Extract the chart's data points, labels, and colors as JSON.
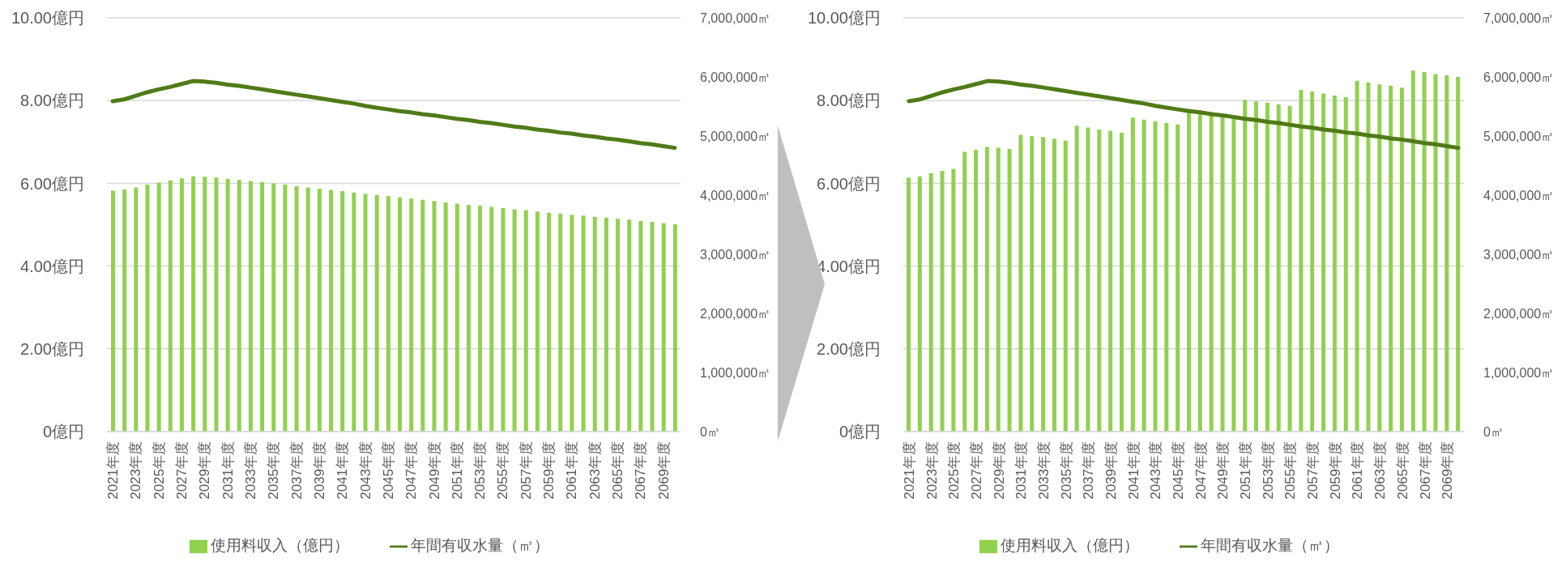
{
  "chart_data": [
    {
      "type": "bar",
      "categories": [
        "2021年度",
        null,
        "2023年度",
        null,
        "2025年度",
        null,
        "2027年度",
        null,
        "2029年度",
        null,
        "2031年度",
        null,
        "2033年度",
        null,
        "2035年度",
        null,
        "2037年度",
        null,
        "2039年度",
        null,
        "2041年度",
        null,
        "2043年度",
        null,
        "2045年度",
        null,
        "2047年度",
        null,
        "2049年度",
        null,
        "2051年度",
        null,
        "2053年度",
        null,
        "2055年度",
        null,
        "2057年度",
        null,
        "2059年度",
        null,
        "2061年度",
        null,
        "2063年度",
        null,
        "2065年度",
        null,
        "2067年度",
        null,
        "2069年度",
        null
      ],
      "series": [
        {
          "name": "使用料収入（億円）",
          "color": "#92d050",
          "values": [
            5.82,
            5.85,
            5.9,
            5.97,
            6.02,
            6.07,
            6.12,
            6.17,
            6.16,
            6.14,
            6.11,
            6.08,
            6.05,
            6.03,
            6.0,
            5.97,
            5.93,
            5.9,
            5.87,
            5.84,
            5.81,
            5.78,
            5.75,
            5.72,
            5.69,
            5.66,
            5.63,
            5.6,
            5.57,
            5.54,
            5.51,
            5.48,
            5.46,
            5.43,
            5.4,
            5.37,
            5.35,
            5.32,
            5.29,
            5.27,
            5.24,
            5.22,
            5.19,
            5.17,
            5.14,
            5.12,
            5.09,
            5.07,
            5.04,
            5.01
          ]
        },
        {
          "name": "年間有収水量（㎥）",
          "type": "line",
          "axis": "y2",
          "color": "#4f7b17",
          "values": [
            5590000,
            5620000,
            5680000,
            5740000,
            5790000,
            5830000,
            5880000,
            5930000,
            5920000,
            5900000,
            5870000,
            5850000,
            5820000,
            5790000,
            5760000,
            5730000,
            5700000,
            5670000,
            5640000,
            5610000,
            5580000,
            5550000,
            5510000,
            5480000,
            5450000,
            5420000,
            5400000,
            5370000,
            5350000,
            5320000,
            5290000,
            5270000,
            5240000,
            5220000,
            5190000,
            5160000,
            5140000,
            5110000,
            5090000,
            5060000,
            5040000,
            5010000,
            4990000,
            4960000,
            4940000,
            4910000,
            4880000,
            4860000,
            4830000,
            4800000
          ]
        }
      ],
      "ylim": [
        0,
        10
      ],
      "yticks": [
        {
          "value": 0,
          "label": "0億円"
        },
        {
          "value": 2,
          "label": "2.00億円"
        },
        {
          "value": 4,
          "label": "4.00億円"
        },
        {
          "value": 6,
          "label": "6.00億円"
        },
        {
          "value": 8,
          "label": "8.00億円"
        },
        {
          "value": 10,
          "label": "10.00億円"
        }
      ],
      "y2lim": [
        0,
        7000000
      ],
      "y2ticks": [
        {
          "value": 0,
          "label": "0㎥"
        },
        {
          "value": 1000000,
          "label": "1,000,000㎥"
        },
        {
          "value": 2000000,
          "label": "2,000,000㎥"
        },
        {
          "value": 3000000,
          "label": "3,000,000㎥"
        },
        {
          "value": 4000000,
          "label": "4,000,000㎥"
        },
        {
          "value": 5000000,
          "label": "5,000,000㎥"
        },
        {
          "value": 6000000,
          "label": "6,000,000㎥"
        },
        {
          "value": 7000000,
          "label": "7,000,000㎥"
        }
      ],
      "grid": "y",
      "legend": "bottom"
    },
    {
      "type": "bar",
      "categories": [
        "2021年度",
        null,
        "2023年度",
        null,
        "2025年度",
        null,
        "2027年度",
        null,
        "2029年度",
        null,
        "2031年度",
        null,
        "2033年度",
        null,
        "2035年度",
        null,
        "2037年度",
        null,
        "2039年度",
        null,
        "2041年度",
        null,
        "2043年度",
        null,
        "2045年度",
        null,
        "2047年度",
        null,
        "2049年度",
        null,
        "2051年度",
        null,
        "2053年度",
        null,
        "2055年度",
        null,
        "2057年度",
        null,
        "2059年度",
        null,
        "2061年度",
        null,
        "2063年度",
        null,
        "2065年度",
        null,
        "2067年度",
        null,
        "2069年度",
        null
      ],
      "series": [
        {
          "name": "使用料収入（億円）",
          "color": "#92d050",
          "values": [
            6.14,
            6.17,
            6.25,
            6.3,
            6.35,
            6.76,
            6.81,
            6.88,
            6.86,
            6.83,
            7.17,
            7.14,
            7.12,
            7.08,
            7.03,
            7.39,
            7.35,
            7.3,
            7.27,
            7.22,
            7.59,
            7.54,
            7.5,
            7.46,
            7.42,
            7.8,
            7.76,
            7.72,
            7.68,
            7.64,
            8.02,
            7.98,
            7.95,
            7.91,
            7.87,
            8.26,
            8.22,
            8.17,
            8.12,
            8.08,
            8.48,
            8.44,
            8.39,
            8.36,
            8.31,
            8.73,
            8.69,
            8.64,
            8.61,
            8.57
          ]
        },
        {
          "name": "年間有収水量（㎥）",
          "type": "line",
          "axis": "y2",
          "color": "#4f7b17",
          "values": [
            5590000,
            5620000,
            5680000,
            5740000,
            5790000,
            5830000,
            5880000,
            5930000,
            5920000,
            5900000,
            5870000,
            5850000,
            5820000,
            5790000,
            5760000,
            5730000,
            5700000,
            5670000,
            5640000,
            5610000,
            5580000,
            5550000,
            5510000,
            5480000,
            5450000,
            5420000,
            5400000,
            5370000,
            5350000,
            5320000,
            5290000,
            5270000,
            5240000,
            5220000,
            5190000,
            5160000,
            5140000,
            5110000,
            5090000,
            5060000,
            5040000,
            5010000,
            4990000,
            4960000,
            4940000,
            4910000,
            4880000,
            4860000,
            4830000,
            4800000
          ]
        }
      ],
      "ylim": [
        0,
        10
      ],
      "yticks": [
        {
          "value": 0,
          "label": "0億円"
        },
        {
          "value": 2,
          "label": "2.00億円"
        },
        {
          "value": 4,
          "label": "4.00億円"
        },
        {
          "value": 6,
          "label": "6.00億円"
        },
        {
          "value": 8,
          "label": "8.00億円"
        },
        {
          "value": 10,
          "label": "10.00億円"
        }
      ],
      "y2lim": [
        0,
        7000000
      ],
      "y2ticks": [
        {
          "value": 0,
          "label": "0㎥"
        },
        {
          "value": 1000000,
          "label": "1,000,000㎥"
        },
        {
          "value": 2000000,
          "label": "2,000,000㎥"
        },
        {
          "value": 3000000,
          "label": "3,000,000㎥"
        },
        {
          "value": 4000000,
          "label": "4,000,000㎥"
        },
        {
          "value": 5000000,
          "label": "5,000,000㎥"
        },
        {
          "value": 6000000,
          "label": "6,000,000㎥"
        },
        {
          "value": 7000000,
          "label": "7,000,000㎥"
        }
      ],
      "grid": "y",
      "legend": "bottom"
    }
  ]
}
